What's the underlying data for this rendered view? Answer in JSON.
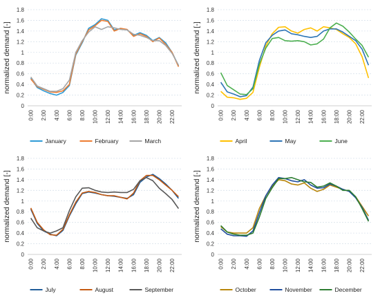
{
  "chart_data": [
    {
      "type": "line",
      "ylabel": "normalized demand [-]",
      "ylim": [
        0,
        1.8
      ],
      "yticks": [
        "0",
        "0.2",
        "0.4",
        "0.6",
        "0.8",
        "1",
        "1.2",
        "1.4",
        "1.6",
        "1.8"
      ],
      "xticks": [
        "0:00",
        "2:00",
        "4:00",
        "6:00",
        "8:00",
        "10:00",
        "12:00",
        "14:00",
        "16:00",
        "18:00",
        "20:00",
        "22:00"
      ],
      "grid": "horizontal",
      "legend": "bottom",
      "series": [
        {
          "name": "January",
          "color": "#2E9BD6",
          "values": [
            0.52,
            0.34,
            0.28,
            0.23,
            0.2,
            0.25,
            0.38,
            0.95,
            1.18,
            1.45,
            1.52,
            1.63,
            1.6,
            1.42,
            1.45,
            1.42,
            1.32,
            1.37,
            1.32,
            1.22,
            1.28,
            1.18,
            1.0,
            0.75
          ]
        },
        {
          "name": "February",
          "color": "#ED7D31",
          "values": [
            0.5,
            0.36,
            0.31,
            0.26,
            0.25,
            0.28,
            0.4,
            0.97,
            1.2,
            1.42,
            1.5,
            1.6,
            1.58,
            1.4,
            1.45,
            1.43,
            1.3,
            1.35,
            1.3,
            1.2,
            1.27,
            1.15,
            1.0,
            0.73
          ]
        },
        {
          "name": "March",
          "color": "#A5A5A5",
          "values": [
            0.54,
            0.37,
            0.32,
            0.27,
            0.27,
            0.32,
            0.48,
            1.0,
            1.22,
            1.38,
            1.48,
            1.43,
            1.48,
            1.46,
            1.43,
            1.42,
            1.34,
            1.32,
            1.28,
            1.22,
            1.22,
            1.13,
            0.98,
            0.76
          ]
        }
      ]
    },
    {
      "type": "line",
      "ylabel": "normalized demand [-]",
      "ylim": [
        0,
        1.8
      ],
      "yticks": [
        "0",
        "0.2",
        "0.4",
        "0.6",
        "0.8",
        "1",
        "1.2",
        "1.4",
        "1.6",
        "1.8"
      ],
      "xticks": [
        "0:00",
        "2:00",
        "4:00",
        "6:00",
        "8:00",
        "10:00",
        "12:00",
        "14:00",
        "16:00",
        "18:00",
        "20:00",
        "22:00"
      ],
      "grid": "horizontal",
      "legend": "bottom",
      "series": [
        {
          "name": "April",
          "color": "#FFC000",
          "values": [
            0.27,
            0.16,
            0.15,
            0.12,
            0.14,
            0.25,
            0.72,
            1.12,
            1.35,
            1.47,
            1.48,
            1.4,
            1.36,
            1.43,
            1.46,
            1.4,
            1.48,
            1.46,
            1.43,
            1.35,
            1.28,
            1.16,
            0.92,
            0.52
          ]
        },
        {
          "name": "May",
          "color": "#2E75B6",
          "values": [
            0.44,
            0.26,
            0.22,
            0.17,
            0.19,
            0.35,
            0.85,
            1.18,
            1.32,
            1.4,
            1.42,
            1.35,
            1.33,
            1.3,
            1.28,
            1.3,
            1.4,
            1.44,
            1.44,
            1.38,
            1.3,
            1.22,
            1.06,
            0.76
          ]
        },
        {
          "name": "June",
          "color": "#4CAF50",
          "values": [
            0.62,
            0.38,
            0.3,
            0.22,
            0.21,
            0.32,
            0.78,
            1.08,
            1.26,
            1.28,
            1.22,
            1.21,
            1.22,
            1.2,
            1.14,
            1.16,
            1.25,
            1.46,
            1.55,
            1.49,
            1.38,
            1.25,
            1.13,
            0.91
          ]
        }
      ]
    },
    {
      "type": "line",
      "ylabel": "normalized demand [-]",
      "ylim": [
        0,
        1.8
      ],
      "yticks": [
        "0",
        "0.2",
        "0.4",
        "0.6",
        "0.8",
        "1",
        "1.2",
        "1.4",
        "1.6",
        "1.8"
      ],
      "xticks": [
        "0:00",
        "2:00",
        "4:00",
        "6:00",
        "8:00",
        "10:00",
        "12:00",
        "14:00",
        "16:00",
        "18:00",
        "20:00",
        "22:00"
      ],
      "grid": "horizontal",
      "legend": "bottom",
      "series": [
        {
          "name": "July",
          "color": "#1F5C99",
          "values": [
            0.85,
            0.58,
            0.44,
            0.38,
            0.35,
            0.45,
            0.72,
            0.95,
            1.14,
            1.17,
            1.15,
            1.12,
            1.1,
            1.09,
            1.07,
            1.05,
            1.12,
            1.35,
            1.45,
            1.5,
            1.42,
            1.32,
            1.2,
            1.05
          ]
        },
        {
          "name": "August",
          "color": "#C55A11",
          "values": [
            0.87,
            0.6,
            0.46,
            0.37,
            0.36,
            0.47,
            0.74,
            0.98,
            1.15,
            1.18,
            1.16,
            1.12,
            1.1,
            1.1,
            1.07,
            1.04,
            1.15,
            1.38,
            1.48,
            1.48,
            1.4,
            1.3,
            1.2,
            1.08
          ]
        },
        {
          "name": "September",
          "color": "#595959",
          "values": [
            0.68,
            0.5,
            0.44,
            0.4,
            0.44,
            0.5,
            0.82,
            1.08,
            1.24,
            1.25,
            1.2,
            1.17,
            1.16,
            1.17,
            1.16,
            1.16,
            1.22,
            1.38,
            1.44,
            1.38,
            1.24,
            1.14,
            1.03,
            0.86
          ]
        }
      ]
    },
    {
      "type": "line",
      "ylabel": "normalized demand [-]",
      "ylim": [
        0,
        1.8
      ],
      "yticks": [
        "0",
        "0.2",
        "0.4",
        "0.6",
        "0.8",
        "1",
        "1.2",
        "1.4",
        "1.6",
        "1.8"
      ],
      "xticks": [
        "0:00",
        "2:00",
        "4:00",
        "6:00",
        "8:00",
        "10:00",
        "12:00",
        "14:00",
        "16:00",
        "18:00",
        "20:00",
        "22:00"
      ],
      "grid": "horizontal",
      "legend": "bottom",
      "series": [
        {
          "name": "October",
          "color": "#B8860B",
          "values": [
            0.52,
            0.42,
            0.4,
            0.4,
            0.4,
            0.5,
            0.86,
            1.1,
            1.28,
            1.4,
            1.38,
            1.32,
            1.3,
            1.34,
            1.24,
            1.18,
            1.22,
            1.3,
            1.26,
            1.22,
            1.18,
            1.08,
            0.9,
            0.72
          ]
        },
        {
          "name": "November",
          "color": "#1F4E9E",
          "values": [
            0.48,
            0.38,
            0.35,
            0.35,
            0.34,
            0.44,
            0.78,
            1.1,
            1.3,
            1.44,
            1.42,
            1.38,
            1.36,
            1.4,
            1.3,
            1.24,
            1.25,
            1.32,
            1.28,
            1.22,
            1.18,
            1.06,
            0.88,
            0.64
          ]
        },
        {
          "name": "December",
          "color": "#2E7D32",
          "values": [
            0.54,
            0.42,
            0.38,
            0.36,
            0.36,
            0.4,
            0.7,
            1.05,
            1.25,
            1.42,
            1.42,
            1.44,
            1.4,
            1.36,
            1.35,
            1.26,
            1.28,
            1.34,
            1.28,
            1.2,
            1.2,
            1.08,
            0.86,
            0.62
          ]
        }
      ]
    }
  ]
}
